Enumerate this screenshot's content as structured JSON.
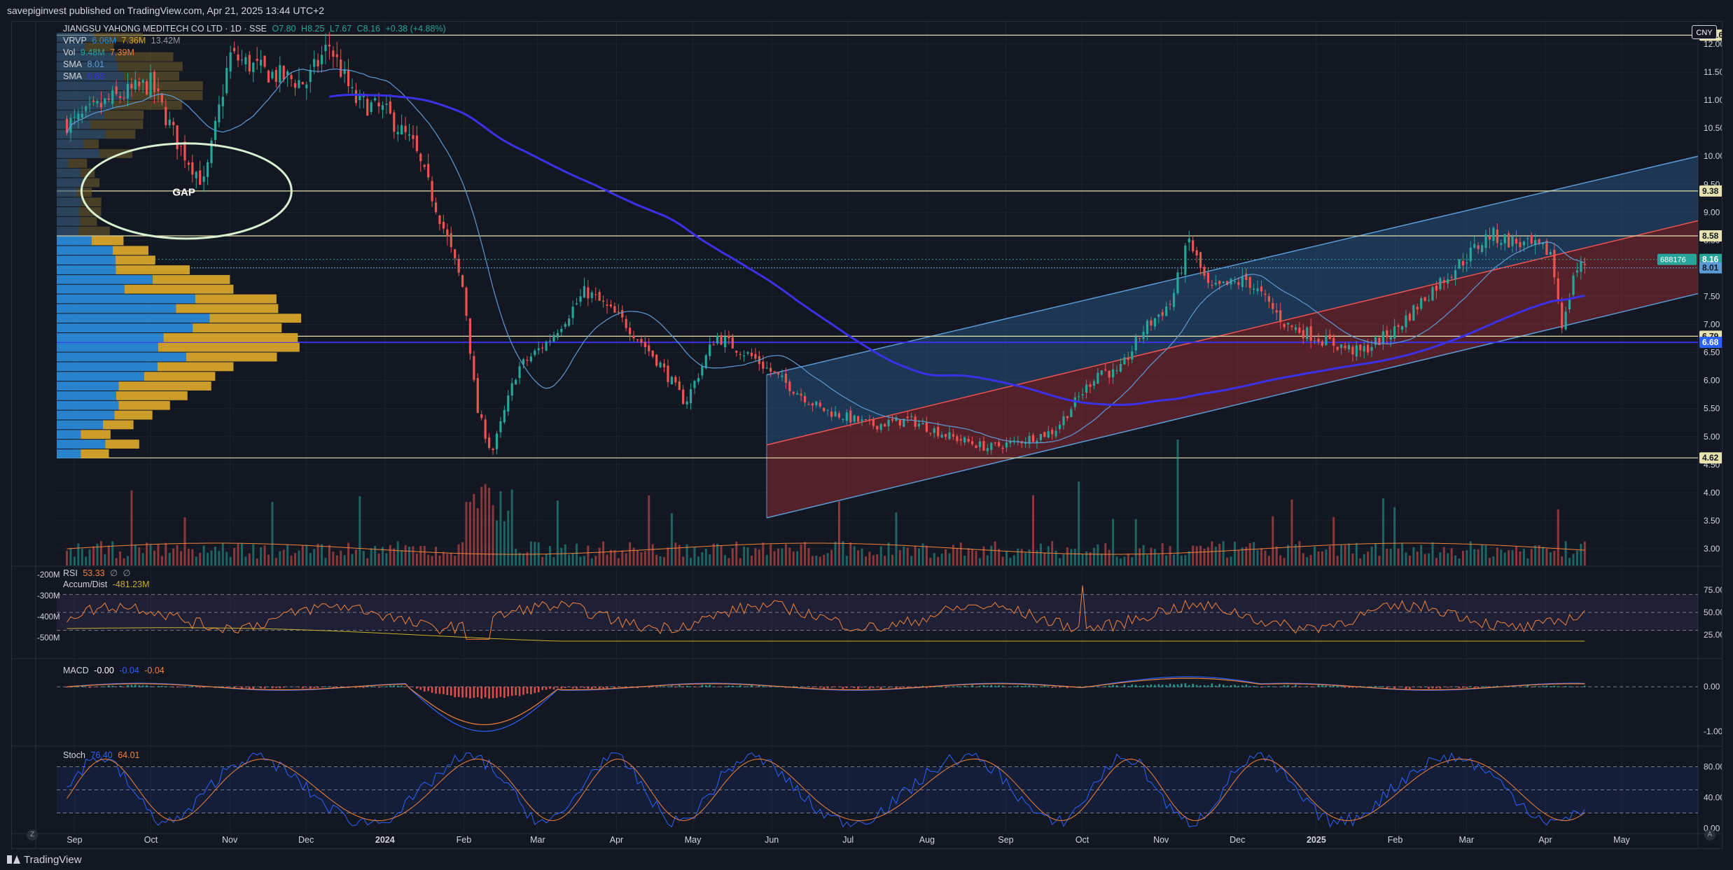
{
  "header": {
    "publisher": "savepiginvest published on TradingView.com, Apr 21, 2025 13:44 UTC+2"
  },
  "footer": {
    "brand": "TradingView"
  },
  "legend": {
    "title": "JIANGSU YAHONG MEDITECH CO LTD · 1D · SSE",
    "open": "O7.80",
    "high": "H8.25",
    "low": "L7.67",
    "close": "C8.16",
    "change": "+0.38 (+4.88%)",
    "vrvp": "VRVP",
    "vrvp_v1": "6.06M",
    "vrvp_v2": "7.36M",
    "vrvp_v3": "13.42M",
    "vol": "Vol",
    "vol_v1": "9.48M",
    "vol_v2": "7.39M",
    "sma1": "SMA",
    "sma1_v": "8.01",
    "sma2": "SMA",
    "sma2_v": "6.68"
  },
  "currency_button": "CNY",
  "rsi_legend": {
    "name": "RSI",
    "v1": "53.33",
    "v2": "∅",
    "v3": "∅"
  },
  "ad_legend": {
    "name": "Accum/Dist",
    "v": "-481.23M"
  },
  "macd_legend": {
    "name": "MACD",
    "v1": "-0.00",
    "v2": "-0.04",
    "v3": "-0.04"
  },
  "stoch_legend": {
    "name": "Stoch",
    "v1": "76.40",
    "v2": "64.01"
  },
  "colors": {
    "bg": "#131722",
    "grid": "#1e222d",
    "up": "#26a69a",
    "down": "#ef5350",
    "sma_long": "#3b31e8",
    "sma_short": "#5b9bd5",
    "vrvp_up": "#2a89d6",
    "vrvp_down": "#d6a42a",
    "channel_blue": "#2f6fb0",
    "channel_red": "#8b2a33",
    "rsi": "#f0833a",
    "stoch_k": "#2962ff",
    "stoch_d": "#f0833a"
  },
  "chart_data": {
    "type": "candlestick",
    "symbol": "JIANGSU YAHONG MEDITECH CO LTD",
    "interval": "1D",
    "exchange": "SSE",
    "x_axis": [
      "Sep",
      "Oct",
      "Nov",
      "Dec",
      "2024",
      "Feb",
      "Mar",
      "Apr",
      "May",
      "Jun",
      "Jul",
      "Aug",
      "Sep",
      "Oct",
      "Nov",
      "Dec",
      "2025",
      "Feb",
      "Mar",
      "Apr",
      "May"
    ],
    "y_axis_ticks": [
      "3.00",
      "3.50",
      "4.00",
      "4.50",
      "5.00",
      "5.50",
      "6.00",
      "6.50",
      "7.00",
      "7.50",
      "8.00",
      "8.50",
      "9.00",
      "9.50",
      "10.00",
      "10.50",
      "11.00",
      "11.50",
      "12.00"
    ],
    "ylim": [
      2.7,
      12.3
    ],
    "price_labels": [
      {
        "value": "12.16",
        "kind": "hline"
      },
      {
        "value": "9.38",
        "kind": "hline"
      },
      {
        "value": "8.58",
        "kind": "hline"
      },
      {
        "value": "8.16",
        "kind": "last",
        "ticker": "688176"
      },
      {
        "value": "8.01",
        "kind": "sma"
      },
      {
        "value": "6.79",
        "kind": "hline"
      },
      {
        "value": "6.68",
        "kind": "sma"
      },
      {
        "value": "4.62",
        "kind": "hline"
      }
    ],
    "annotations": [
      {
        "text": "GAP",
        "x": "Oct 2023",
        "y": 9.3
      }
    ],
    "closes_anchor": [
      [
        "2023-09-01",
        10.6
      ],
      [
        "2023-09-15",
        11.0
      ],
      [
        "2023-10-01",
        11.3
      ],
      [
        "2023-10-12",
        10.2
      ],
      [
        "2023-10-22",
        9.5
      ],
      [
        "2023-11-01",
        11.8
      ],
      [
        "2023-11-15",
        11.5
      ],
      [
        "2023-12-01",
        11.3
      ],
      [
        "2023-12-10",
        12.0
      ],
      [
        "2023-12-20",
        11.0
      ],
      [
        "2024-01-01",
        10.8
      ],
      [
        "2024-01-12",
        10.2
      ],
      [
        "2024-01-22",
        9.0
      ],
      [
        "2024-02-01",
        7.6
      ],
      [
        "2024-02-06",
        5.5
      ],
      [
        "2024-02-12",
        4.7
      ],
      [
        "2024-02-22",
        6.2
      ],
      [
        "2024-03-05",
        6.7
      ],
      [
        "2024-03-20",
        7.6
      ],
      [
        "2024-04-05",
        7.0
      ],
      [
        "2024-04-18",
        6.3
      ],
      [
        "2024-04-28",
        5.6
      ],
      [
        "2024-05-10",
        6.8
      ],
      [
        "2024-05-25",
        6.4
      ],
      [
        "2024-06-05",
        6.0
      ],
      [
        "2024-06-20",
        5.5
      ],
      [
        "2024-07-10",
        5.2
      ],
      [
        "2024-07-25",
        5.3
      ],
      [
        "2024-08-10",
        5.0
      ],
      [
        "2024-08-25",
        4.8
      ],
      [
        "2024-09-05",
        4.9
      ],
      [
        "2024-09-20",
        5.1
      ],
      [
        "2024-09-28",
        5.6
      ],
      [
        "2024-10-08",
        6.2
      ],
      [
        "2024-10-15",
        6.1
      ],
      [
        "2024-10-25",
        6.9
      ],
      [
        "2024-11-05",
        7.4
      ],
      [
        "2024-11-12",
        8.5
      ],
      [
        "2024-11-20",
        7.6
      ],
      [
        "2024-12-05",
        7.8
      ],
      [
        "2024-12-20",
        7.0
      ],
      [
        "2025-01-05",
        6.7
      ],
      [
        "2025-01-18",
        6.5
      ],
      [
        "2025-02-01",
        6.9
      ],
      [
        "2025-02-15",
        7.6
      ],
      [
        "2025-03-01",
        8.2
      ],
      [
        "2025-03-10",
        8.6
      ],
      [
        "2025-03-25",
        8.4
      ],
      [
        "2025-04-03",
        8.3
      ],
      [
        "2025-04-08",
        6.9
      ],
      [
        "2025-04-12",
        7.9
      ],
      [
        "2025-04-18",
        8.16
      ]
    ],
    "rsi_ticks": [
      "75.00",
      "50.00",
      "25.00"
    ],
    "ad_ticks": [
      "-200M",
      "-300M",
      "-400M",
      "-500M"
    ],
    "macd_ticks": [
      "0.00",
      "-1.00"
    ],
    "stoch_ticks": [
      "80.00",
      "40.00",
      "0.00"
    ]
  }
}
